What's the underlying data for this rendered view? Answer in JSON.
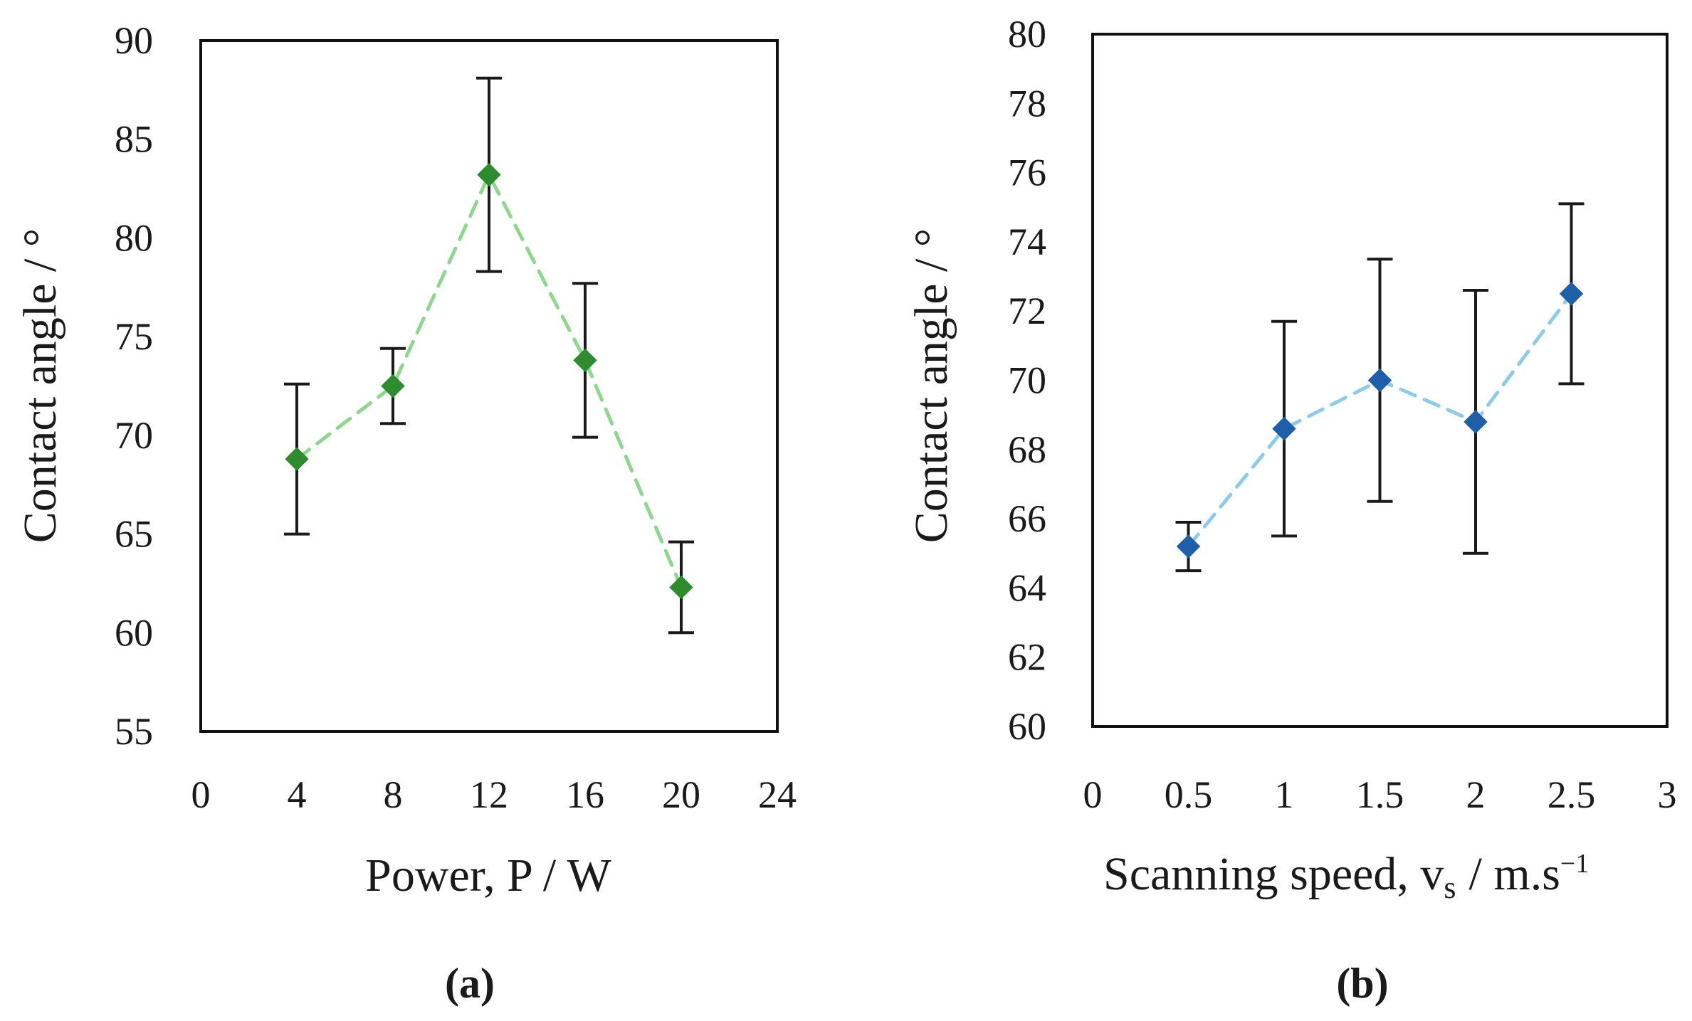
{
  "chart_data": [
    {
      "type": "line",
      "panel_label": "(a)",
      "xlabel": "Power, P / W",
      "ylabel": "Contact angle / °",
      "xlim": [
        0,
        24
      ],
      "ylim": [
        55,
        90
      ],
      "xticks": [
        0,
        4,
        8,
        12,
        16,
        20,
        24
      ],
      "yticks": [
        55,
        60,
        65,
        70,
        75,
        80,
        85,
        90
      ],
      "xtick_labels": [
        "0",
        "4",
        "8",
        "12",
        "16",
        "20",
        "24"
      ],
      "ytick_labels": [
        "55",
        "60",
        "65",
        "70",
        "75",
        "80",
        "85",
        "90"
      ],
      "series": [
        {
          "name": "Power",
          "marker": "diamond",
          "marker_color": "#2e8b2e",
          "line_color": "#8fd68f",
          "line_style": "dashed",
          "x": [
            4,
            8,
            12,
            16,
            20
          ],
          "values": [
            68.8,
            72.5,
            83.2,
            73.8,
            62.3
          ],
          "error": [
            3.8,
            1.9,
            4.9,
            3.9,
            2.3
          ]
        }
      ]
    },
    {
      "type": "line",
      "panel_label": "(b)",
      "xlabel": "Scanning speed, v",
      "xlabel_sub": "s",
      "xlabel_unit": "/ m.s",
      "xlabel_sup": "−1",
      "ylabel": "Contact angle / °",
      "xlim": [
        0,
        3
      ],
      "ylim": [
        60,
        80
      ],
      "xticks": [
        0,
        0.5,
        1,
        1.5,
        2,
        2.5,
        3
      ],
      "yticks": [
        60,
        62,
        64,
        66,
        68,
        70,
        72,
        74,
        76,
        78,
        80
      ],
      "xtick_labels": [
        "0",
        "0.5",
        "1",
        "1.5",
        "2",
        "2.5",
        "3"
      ],
      "ytick_labels": [
        "60",
        "62",
        "64",
        "66",
        "68",
        "70",
        "72",
        "74",
        "76",
        "78",
        "80"
      ],
      "series": [
        {
          "name": "Scanning speed",
          "marker": "diamond",
          "marker_color": "#1f5fa8",
          "line_color": "#8ccbea",
          "line_style": "dashed",
          "x": [
            0.5,
            1,
            1.5,
            2,
            2.5
          ],
          "values": [
            65.2,
            68.6,
            70.0,
            68.8,
            72.5
          ],
          "error": [
            0.7,
            3.1,
            3.5,
            3.8,
            2.6
          ]
        }
      ]
    }
  ]
}
